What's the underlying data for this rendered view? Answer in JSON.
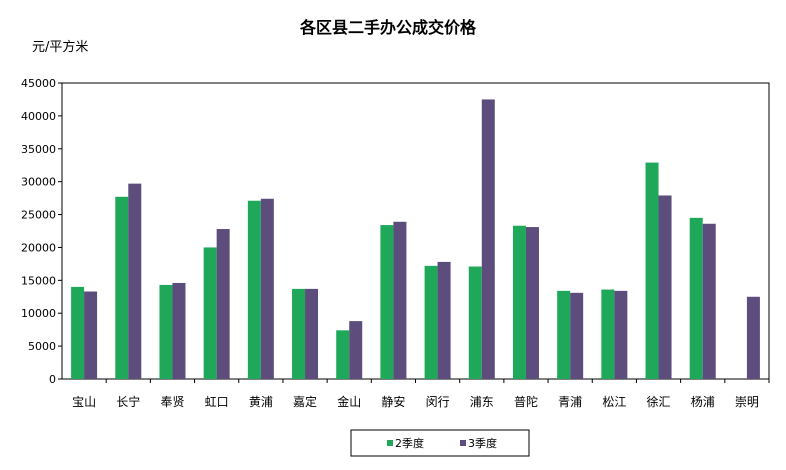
{
  "chart_data": {
    "type": "bar",
    "title": "各区县二手办公成交价格",
    "ylabel": "元/平方米",
    "xlabel": "",
    "ylim": [
      0,
      45000
    ],
    "yticks": [
      0,
      5000,
      10000,
      15000,
      20000,
      25000,
      30000,
      35000,
      40000,
      45000
    ],
    "grid": false,
    "legend_position": "bottom-center",
    "categories": [
      "宝山",
      "长宁",
      "奉贤",
      "虹口",
      "黄浦",
      "嘉定",
      "金山",
      "静安",
      "闵行",
      "浦东",
      "普陀",
      "青浦",
      "松江",
      "徐汇",
      "杨浦",
      "崇明"
    ],
    "series": [
      {
        "name": "2季度",
        "color": "#1fa85a",
        "values": [
          14000,
          27700,
          14300,
          20000,
          27100,
          13700,
          7400,
          23400,
          17200,
          17100,
          23300,
          13400,
          13600,
          32900,
          24500,
          null
        ]
      },
      {
        "name": "3季度",
        "color": "#5c4d7d",
        "values": [
          13300,
          29700,
          14600,
          22800,
          27400,
          13700,
          8800,
          23900,
          17800,
          42500,
          23100,
          13100,
          13400,
          27900,
          23600,
          12500
        ]
      }
    ]
  }
}
